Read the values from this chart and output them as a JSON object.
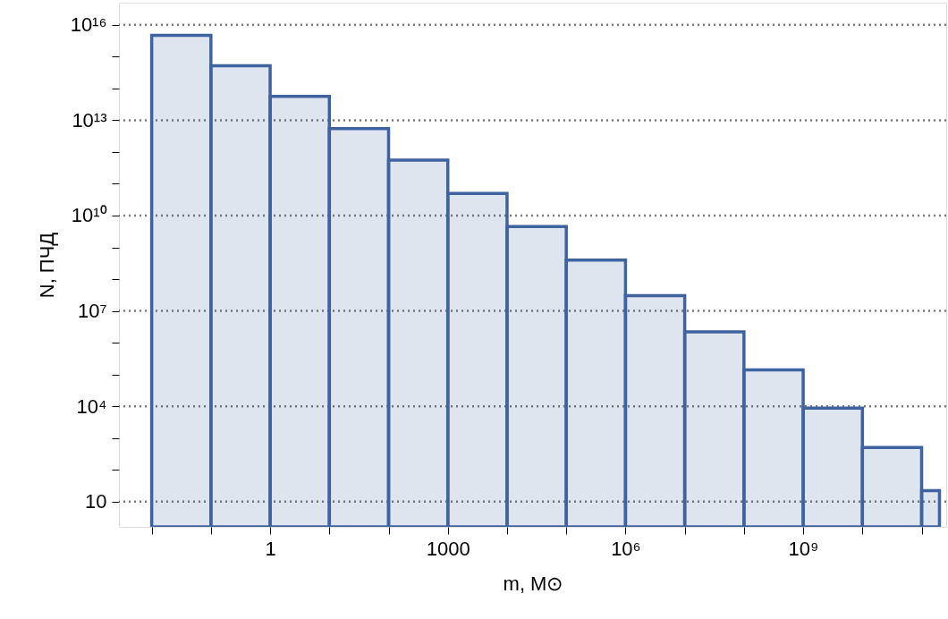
{
  "chart_data": {
    "type": "histogram",
    "xlabel": "m, M⊙",
    "ylabel": "N, ПЧД",
    "bins": [
      0.01,
      0.1,
      1,
      10,
      100,
      1000,
      10000,
      100000,
      1000000,
      10000000,
      100000000,
      1000000000,
      10000000000,
      100000000000,
      200000000000
    ],
    "values": [
      4700000000000000.0,
      520000000000000.0,
      56000000000000.0,
      5500000000000.0,
      560000000000.0,
      50000000000.0,
      4500000000.0,
      400000000.0,
      30000000.0,
      2200000.0,
      140000.0,
      8700,
      500,
      22
    ],
    "color": "#3f63a0",
    "log": "xy",
    "xlim": [
      0.0028,
      260000000000.0
    ],
    "ylim": [
      1.6,
      5e+16
    ],
    "xticks": [
      {
        "value": 0.01,
        "label": null
      },
      {
        "value": 0.1,
        "label": null
      },
      1,
      {
        "value": 10,
        "label": null
      },
      {
        "value": 100,
        "label": null
      },
      1000,
      {
        "value": 10000,
        "label": null
      },
      {
        "value": 100000,
        "label": null
      },
      {
        "value": 1000000,
        "label": "10⁶"
      },
      {
        "value": 10000000,
        "label": null
      },
      {
        "value": 100000000,
        "label": null
      },
      {
        "value": 1000000000,
        "label": "10⁹"
      },
      {
        "value": 10000000000,
        "label": null
      },
      {
        "value": 100000000000,
        "label": null
      }
    ],
    "yticks": [
      10,
      {
        "value": 100,
        "label": null
      },
      {
        "value": 1000,
        "label": null
      },
      {
        "value": 10000,
        "label": "10⁴"
      },
      {
        "value": 100000.0,
        "label": null
      },
      {
        "value": 1000000.0,
        "label": null
      },
      {
        "value": 10000000.0,
        "label": "10⁷"
      },
      {
        "value": 100000000.0,
        "label": null
      },
      {
        "value": 1000000000.0,
        "label": null
      },
      {
        "value": 10000000000.0,
        "label": "10¹⁰"
      },
      {
        "value": 100000000000.0,
        "label": null
      },
      {
        "value": 1000000000000.0,
        "label": null
      },
      {
        "value": 10000000000000.0,
        "label": "10¹³"
      },
      {
        "value": 100000000000000.0,
        "label": null
      },
      {
        "value": 1000000000000000.0,
        "label": null
      },
      {
        "value": 1e+16,
        "label": "10¹⁶"
      }
    ],
    "grid": "y"
  }
}
